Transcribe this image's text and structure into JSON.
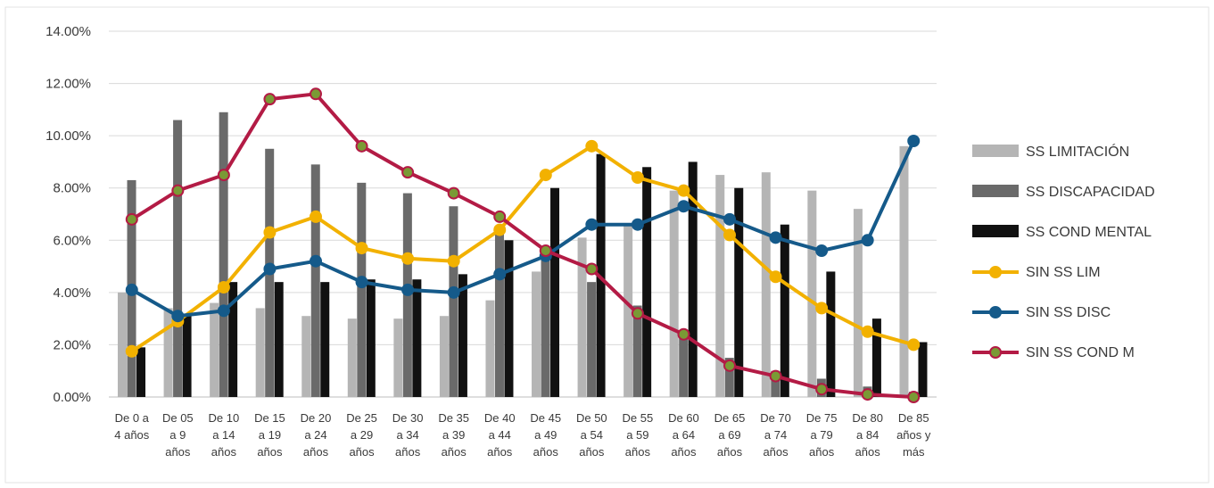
{
  "chart_data": {
    "type": "bar",
    "title": "",
    "xlabel": "",
    "ylabel": "",
    "ylim": [
      0,
      0.14
    ],
    "y_ticks": [
      "0.00%",
      "2.00%",
      "4.00%",
      "6.00%",
      "8.00%",
      "10.00%",
      "12.00%",
      "14.00%"
    ],
    "y_tick_values": [
      0,
      0.02,
      0.04,
      0.06,
      0.08,
      0.1,
      0.12,
      0.14
    ],
    "grid": true,
    "legend_position": "right",
    "categories": [
      [
        "De 0 a",
        "4 años"
      ],
      [
        "De 05",
        "a 9",
        "años"
      ],
      [
        "De 10",
        "a 14",
        "años"
      ],
      [
        "De 15",
        "a 19",
        "años"
      ],
      [
        "De 20",
        "a 24",
        "años"
      ],
      [
        "De 25",
        "a 29",
        "años"
      ],
      [
        "De 30",
        "a 34",
        "años"
      ],
      [
        "De 35",
        "a 39",
        "años"
      ],
      [
        "De 40",
        "a 44",
        "años"
      ],
      [
        "De 45",
        "a 49",
        "años"
      ],
      [
        "De 50",
        "a 54",
        "años"
      ],
      [
        "De 55",
        "a 59",
        "años"
      ],
      [
        "De 60",
        "a 64",
        "años"
      ],
      [
        "De 65",
        "a 69",
        "años"
      ],
      [
        "De 70",
        "a 74",
        "años"
      ],
      [
        "De 75",
        "a 79",
        "años"
      ],
      [
        "De 80",
        "a 84",
        "años"
      ],
      [
        "De 85",
        "años y",
        "más"
      ]
    ],
    "bar_series": [
      {
        "name": "SS LIMITACIÓN",
        "color": "#b5b5b5",
        "values": [
          0.04,
          0.034,
          0.036,
          0.034,
          0.031,
          0.03,
          0.03,
          0.031,
          0.037,
          0.048,
          0.061,
          0.066,
          0.079,
          0.085,
          0.086,
          0.079,
          0.072,
          0.096
        ]
      },
      {
        "name": "SS DISCAPACIDAD",
        "color": "#6a6a6a",
        "values": [
          0.083,
          0.106,
          0.109,
          0.095,
          0.089,
          0.082,
          0.078,
          0.073,
          0.064,
          0.056,
          0.044,
          0.035,
          0.024,
          0.015,
          0.01,
          0.007,
          0.004,
          0.002
        ]
      },
      {
        "name": "SS COND MENTAL",
        "color": "#111111",
        "values": [
          0.019,
          0.031,
          0.044,
          0.044,
          0.044,
          0.045,
          0.045,
          0.047,
          0.06,
          0.08,
          0.093,
          0.088,
          0.09,
          0.08,
          0.066,
          0.048,
          0.03,
          0.021
        ]
      }
    ],
    "line_series": [
      {
        "name": "SIN SS LIM",
        "color": "#f2b100",
        "marker_fill": "#f2b100",
        "values": [
          0.0175,
          0.029,
          0.042,
          0.063,
          0.069,
          0.057,
          0.053,
          0.052,
          0.064,
          0.085,
          0.096,
          0.084,
          0.079,
          0.062,
          0.046,
          0.034,
          0.025,
          0.02
        ]
      },
      {
        "name": "SIN SS DISC",
        "color": "#155a8a",
        "marker_fill": "#155a8a",
        "values": [
          0.041,
          0.031,
          0.033,
          0.049,
          0.052,
          0.044,
          0.041,
          0.04,
          0.047,
          0.054,
          0.066,
          0.066,
          0.073,
          0.068,
          0.061,
          0.056,
          0.06,
          0.098
        ]
      },
      {
        "name": "SIN SS COND M",
        "color": "#b31b45",
        "marker_fill": "#7a9a35",
        "values": [
          0.068,
          0.079,
          0.085,
          0.114,
          0.116,
          0.096,
          0.086,
          0.078,
          0.069,
          0.056,
          0.049,
          0.032,
          0.024,
          0.012,
          0.008,
          0.003,
          0.001,
          0.0
        ]
      }
    ]
  }
}
